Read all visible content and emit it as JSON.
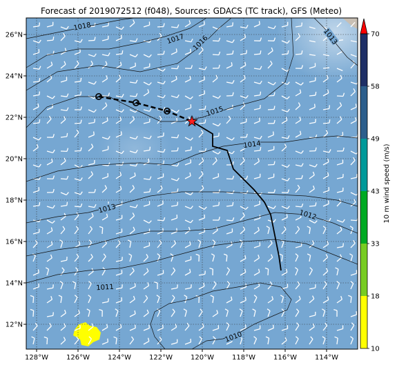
{
  "title": "Forecast of 2019072512 (f048), Sources: GDACS (TC track), GFS (Meteo)",
  "map": {
    "lon_range": [
      -128.5,
      -112.5
    ],
    "lat_range": [
      10.8,
      26.8
    ],
    "lon_ticks": [
      {
        "v": -128,
        "label": "128°W"
      },
      {
        "v": -126,
        "label": "126°W"
      },
      {
        "v": -124,
        "label": "124°W"
      },
      {
        "v": -122,
        "label": "122°W"
      },
      {
        "v": -120,
        "label": "120°W"
      },
      {
        "v": -118,
        "label": "118°W"
      },
      {
        "v": -116,
        "label": "116°W"
      },
      {
        "v": -114,
        "label": "114°W"
      }
    ],
    "lat_ticks": [
      {
        "v": 12,
        "label": "12°N"
      },
      {
        "v": 14,
        "label": "14°N"
      },
      {
        "v": 16,
        "label": "16°N"
      },
      {
        "v": 18,
        "label": "18°N"
      },
      {
        "v": 20,
        "label": "20°N"
      },
      {
        "v": 22,
        "label": "22°N"
      },
      {
        "v": 24,
        "label": "24°N"
      },
      {
        "v": 26,
        "label": "26°N"
      }
    ],
    "grid": "dotted",
    "ocean_color": "#76a7d2",
    "land_color": "#c8bfb4"
  },
  "isobars": [
    {
      "label": "1018",
      "label_at": [
        -125.8,
        26.4
      ],
      "points": [
        [
          -128.5,
          25.8
        ],
        [
          -127,
          26.1
        ],
        [
          -125.5,
          26.4
        ],
        [
          -124,
          26.7
        ],
        [
          -123.3,
          26.8
        ]
      ]
    },
    {
      "label": "1017",
      "label_at": [
        -121.3,
        25.8
      ],
      "points": [
        [
          -128.5,
          24.4
        ],
        [
          -127.5,
          25.0
        ],
        [
          -126,
          25.3
        ],
        [
          -124.5,
          25.3
        ],
        [
          -123,
          25.6
        ],
        [
          -121.8,
          25.9
        ],
        [
          -120.6,
          26.3
        ],
        [
          -119.8,
          26.8
        ]
      ]
    },
    {
      "label": "1016",
      "label_at": [
        -120.1,
        25.6
      ],
      "points": [
        [
          -128.5,
          23.3
        ],
        [
          -127,
          24.2
        ],
        [
          -125,
          24.5
        ],
        [
          -123,
          24.2
        ],
        [
          -121.2,
          24.6
        ],
        [
          -120,
          25.5
        ],
        [
          -119.2,
          26.3
        ],
        [
          -118.6,
          26.8
        ]
      ]
    },
    {
      "label": "1015",
      "label_at": [
        -119.4,
        22.3
      ],
      "points": [
        [
          -128.5,
          21.5
        ],
        [
          -127.5,
          22.5
        ],
        [
          -126,
          23.0
        ],
        [
          -124.5,
          23.0
        ],
        [
          -123.3,
          22.4
        ],
        [
          -122,
          21.8
        ],
        [
          -121,
          21.8
        ],
        [
          -120,
          22.0
        ],
        [
          -118.5,
          22.5
        ],
        [
          -117,
          22.9
        ],
        [
          -116,
          23.7
        ],
        [
          -115.6,
          25.0
        ],
        [
          -115.7,
          26.8
        ]
      ]
    },
    {
      "label": "1014",
      "label_at": [
        -117.6,
        20.7
      ],
      "points": [
        [
          -128.5,
          18.9
        ],
        [
          -127,
          19.4
        ],
        [
          -125,
          19.7
        ],
        [
          -123,
          19.8
        ],
        [
          -121.5,
          19.7
        ],
        [
          -120.3,
          20.2
        ],
        [
          -119,
          20.6
        ],
        [
          -117.5,
          20.8
        ],
        [
          -116,
          20.8
        ],
        [
          -114.7,
          21.0
        ],
        [
          -113.5,
          21.1
        ],
        [
          -112.5,
          21.0
        ]
      ]
    },
    {
      "label": "1013",
      "label_at": [
        -124.6,
        17.6
      ],
      "points": [
        [
          -128.5,
          16.9
        ],
        [
          -127,
          17.2
        ],
        [
          -125.5,
          17.4
        ],
        [
          -124,
          17.8
        ],
        [
          -122.5,
          18.2
        ],
        [
          -121,
          18.4
        ],
        [
          -119,
          18.4
        ],
        [
          -117,
          18.3
        ],
        [
          -115,
          18.2
        ],
        [
          -113.5,
          18.0
        ],
        [
          -112.5,
          17.7
        ]
      ]
    },
    {
      "label": "1013",
      "label_at": [
        -113.8,
        25.9
      ],
      "points": [
        [
          -114.6,
          26.8
        ],
        [
          -114.1,
          26.3
        ],
        [
          -113.5,
          25.5
        ],
        [
          -113.0,
          24.9
        ],
        [
          -112.5,
          24.5
        ]
      ]
    },
    {
      "label": "1012",
      "label_at": [
        -114.9,
        17.3
      ],
      "points": [
        [
          -128.5,
          15.3
        ],
        [
          -127,
          15.6
        ],
        [
          -125.5,
          15.8
        ],
        [
          -124,
          16.2
        ],
        [
          -122.5,
          16.5
        ],
        [
          -121,
          16.5
        ],
        [
          -119.5,
          16.6
        ],
        [
          -118,
          17.0
        ],
        [
          -116.5,
          17.4
        ],
        [
          -115,
          17.3
        ],
        [
          -113.7,
          16.9
        ],
        [
          -112.5,
          16.4
        ]
      ]
    },
    {
      "label": "1011",
      "label_at": [
        -124.7,
        13.8
      ],
      "points": [
        [
          -128.5,
          14.0
        ],
        [
          -127,
          14.4
        ],
        [
          -125.5,
          14.6
        ],
        [
          -124,
          14.7
        ],
        [
          -122.5,
          15.0
        ],
        [
          -121,
          15.4
        ],
        [
          -119.5,
          15.8
        ],
        [
          -118,
          16.0
        ],
        [
          -116.5,
          16.1
        ],
        [
          -115,
          15.9
        ],
        [
          -113.5,
          15.3
        ],
        [
          -112.5,
          14.9
        ]
      ]
    },
    {
      "label": "1010",
      "label_at": [
        -118.5,
        11.4
      ],
      "points": [
        [
          -120.5,
          10.8
        ],
        [
          -119.8,
          11.2
        ],
        [
          -119,
          11.3
        ],
        [
          -118.2,
          11.6
        ],
        [
          -117.5,
          12.0
        ],
        [
          -116.6,
          12.4
        ],
        [
          -115.9,
          12.7
        ],
        [
          -115.7,
          13.2
        ],
        [
          -116.2,
          13.8
        ],
        [
          -117.2,
          14.0
        ],
        [
          -118.3,
          13.8
        ],
        [
          -119.5,
          13.6
        ],
        [
          -120.6,
          13.2
        ],
        [
          -121.6,
          13.0
        ],
        [
          -122.3,
          12.6
        ],
        [
          -122.5,
          12.0
        ],
        [
          -122.3,
          11.4
        ],
        [
          -121.8,
          10.8
        ]
      ]
    }
  ],
  "track_past": [
    [
      -125.0,
      23.0
    ],
    [
      -123.2,
      22.7
    ],
    [
      -121.7,
      22.3
    ],
    [
      -120.5,
      21.8
    ]
  ],
  "track_forecast": [
    [
      -120.5,
      21.8
    ],
    [
      -119.5,
      21.2
    ],
    [
      -119.5,
      20.6
    ],
    [
      -118.8,
      20.4
    ],
    [
      -118.5,
      19.5
    ],
    [
      -118.0,
      19.0
    ],
    [
      -117.5,
      18.5
    ],
    [
      -117.0,
      17.9
    ],
    [
      -116.7,
      17.3
    ],
    [
      -116.5,
      16.3
    ],
    [
      -116.3,
      15.3
    ],
    [
      -116.2,
      14.6
    ]
  ],
  "track_markers": [
    [
      -125.0,
      23.0
    ],
    [
      -123.2,
      22.7
    ],
    [
      -121.7,
      22.3
    ]
  ],
  "current_position": [
    -120.5,
    21.8
  ],
  "colorbar": {
    "label": "10 m wind speed (m/s)",
    "levels": [
      10,
      18,
      33,
      43,
      49,
      58,
      70
    ],
    "colors": [
      "#ffff00",
      "#77cc22",
      "#00aa22",
      "#009999",
      "#2c5e8c",
      "#1e2f66"
    ],
    "extend_color": "#ff0000"
  }
}
